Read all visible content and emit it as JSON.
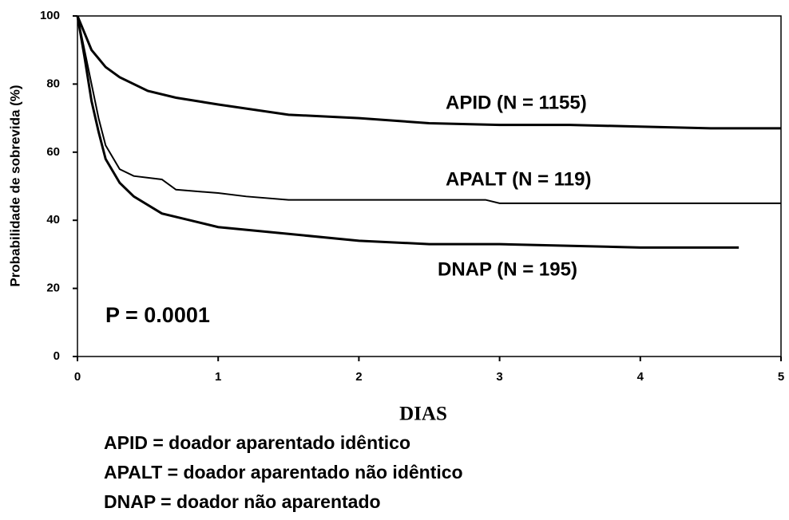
{
  "chart_data": {
    "type": "line",
    "xlabel": "DIAS",
    "ylabel": "Probabilidade de sobrevida (%)",
    "xlim": [
      0,
      5
    ],
    "xticks": [
      0,
      1,
      2,
      3,
      4,
      5
    ],
    "ylim": [
      0,
      100
    ],
    "yticks": [
      0,
      20,
      40,
      60,
      80,
      100
    ],
    "series": [
      {
        "name": "APID (N = 1155)",
        "color": "#000000",
        "x": [
          0,
          0.05,
          0.1,
          0.2,
          0.3,
          0.5,
          0.7,
          1,
          1.5,
          2,
          2.5,
          3,
          3.5,
          4,
          4.5,
          5
        ],
        "values": [
          100,
          95,
          90,
          85,
          82,
          78,
          76,
          74,
          71,
          70,
          68.5,
          68,
          68,
          67.5,
          67,
          67
        ]
      },
      {
        "name": "APALT (N = 119)",
        "color": "#000000",
        "x": [
          0,
          0.05,
          0.1,
          0.15,
          0.2,
          0.3,
          0.4,
          0.6,
          0.7,
          1,
          1.2,
          1.5,
          2,
          2.9,
          3,
          4,
          5
        ],
        "values": [
          100,
          90,
          80,
          70,
          62,
          55,
          53,
          52,
          49,
          48,
          47,
          46,
          46,
          46,
          45,
          45,
          45
        ]
      },
      {
        "name": "DNAP (N = 195)",
        "color": "#000000",
        "x": [
          0,
          0.05,
          0.1,
          0.15,
          0.2,
          0.3,
          0.4,
          0.6,
          0.8,
          1,
          1.5,
          2,
          2.5,
          3,
          4,
          4.7
        ],
        "values": [
          100,
          88,
          75,
          66,
          58,
          51,
          47,
          42,
          40,
          38,
          36,
          34,
          33,
          33,
          32,
          32
        ]
      }
    ],
    "annotations": [
      "P = 0.0001"
    ],
    "notes": [
      "APID = doador aparentado idêntico",
      "APALT = doador aparentado não idêntico",
      "DNAP = doador não aparentado"
    ]
  }
}
